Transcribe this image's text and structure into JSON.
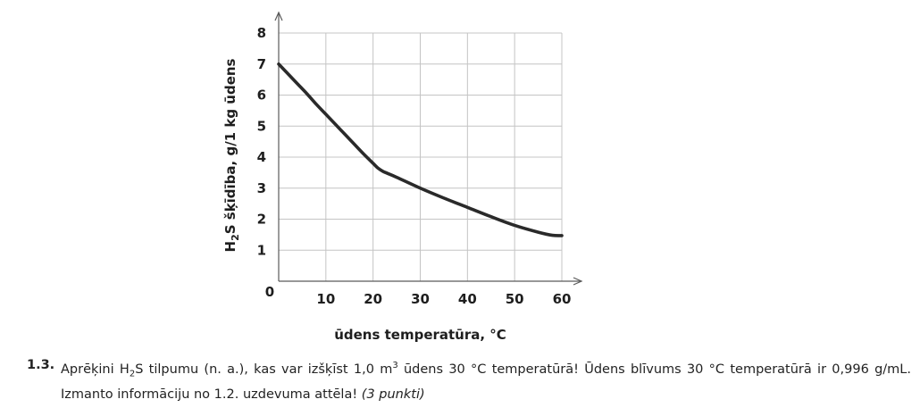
{
  "chart_data": {
    "type": "line",
    "title": "",
    "xlabel": "ūdens temperatūra, °C",
    "ylabel_parts": [
      "H",
      "2",
      "S šķīdība, g/1 kg ūdens"
    ],
    "xlim": [
      0,
      60
    ],
    "ylim": [
      0,
      8
    ],
    "x_ticks": [
      "10",
      "20",
      "30",
      "40",
      "50",
      "60"
    ],
    "y_ticks": [
      "1",
      "2",
      "3",
      "4",
      "5",
      "6",
      "7",
      "8"
    ],
    "origin_label": "0",
    "grid": true,
    "series": [
      {
        "x": [
          0,
          2,
          4,
          6,
          8,
          10,
          12,
          14,
          16,
          18,
          20,
          21,
          22,
          23,
          25,
          30,
          35,
          40,
          45,
          50,
          55,
          58,
          60
        ],
        "y": [
          7.0,
          6.68,
          6.36,
          6.04,
          5.7,
          5.38,
          5.06,
          4.74,
          4.42,
          4.1,
          3.8,
          3.65,
          3.55,
          3.48,
          3.35,
          3.0,
          2.68,
          2.38,
          2.08,
          1.8,
          1.58,
          1.48,
          1.47
        ]
      }
    ],
    "colors": {
      "line": "#2a2a2a",
      "grid": "#c4c4c4",
      "axis": "#5a5a5a"
    }
  },
  "task": {
    "number": "1.3.",
    "text_parts": [
      "Aprēķini H",
      "2",
      "S tilpumu (n. a.), kas var izšķīst 1,0 m",
      "3",
      " ūdens 30 °C temperatūrā! Ūdens blīvums 30 °C temperatūrā ir 0,996 g/mL. Izmanto informāciju no 1.2. uzdevuma attēla! ",
      "(3 punkti)"
    ]
  }
}
